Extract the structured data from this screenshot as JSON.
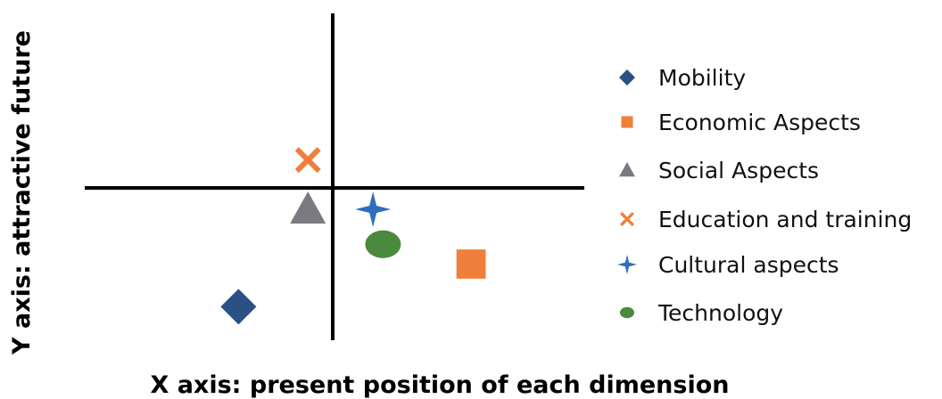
{
  "chart_data": {
    "type": "scatter",
    "xlabel": "X axis: present position of each dimension",
    "ylabel": "Y axis: attractive future",
    "xlim": [
      -1,
      1
    ],
    "ylim": [
      -1,
      1
    ],
    "grid": false,
    "legend_position": "right",
    "series": [
      {
        "name": "Mobility",
        "marker": "diamond",
        "color": "#2b5084",
        "x": -0.38,
        "y": -0.78
      },
      {
        "name": "Economic Aspects",
        "marker": "square",
        "color": "#f07f3c",
        "x": 0.55,
        "y": -0.5
      },
      {
        "name": "Social Aspects",
        "marker": "triangle",
        "color": "#7a7a80",
        "x": -0.1,
        "y": -0.14
      },
      {
        "name": "Education and training",
        "marker": "x",
        "color": "#f07f3c",
        "x": -0.1,
        "y": 0.16
      },
      {
        "name": "Cultural aspects",
        "marker": "star4",
        "color": "#2e6fbd",
        "x": 0.16,
        "y": -0.14
      },
      {
        "name": "Technology",
        "marker": "circle",
        "color": "#4a8a3e",
        "x": 0.2,
        "y": -0.37
      }
    ]
  }
}
